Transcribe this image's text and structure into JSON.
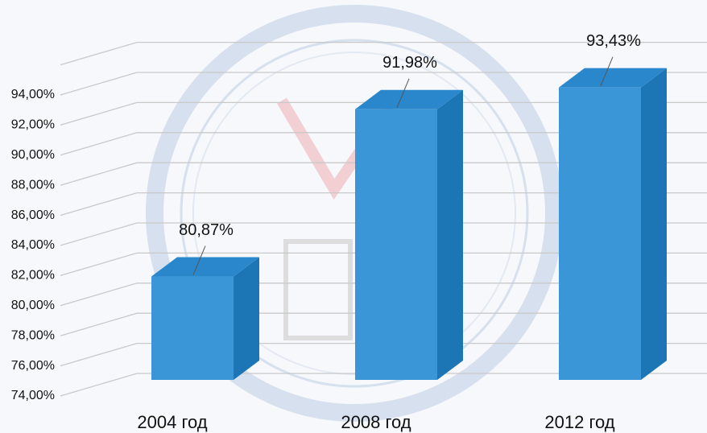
{
  "chart_data": {
    "type": "bar3d",
    "categories": [
      "2004 год",
      "2008 год",
      "2012 год"
    ],
    "values": [
      80.87,
      91.98,
      93.43
    ],
    "value_labels": [
      "80,87%",
      "91,98%",
      "93,43%"
    ],
    "color": "#3a96d6",
    "ylim": [
      74,
      96
    ],
    "yticks": [
      {
        "value": 74,
        "label": "74,00%"
      },
      {
        "value": 76,
        "label": "76,00%"
      },
      {
        "value": 78,
        "label": "78,00%"
      },
      {
        "value": 80,
        "label": "80,00%"
      },
      {
        "value": 82,
        "label": "82,00%"
      },
      {
        "value": 84,
        "label": "84,00%"
      },
      {
        "value": 86,
        "label": "86,00%"
      },
      {
        "value": 88,
        "label": "88,00%"
      },
      {
        "value": 90,
        "label": "90,00%"
      },
      {
        "value": 92,
        "label": "92,00%"
      },
      {
        "value": 94,
        "label": "94,00%"
      }
    ],
    "grid": true
  }
}
